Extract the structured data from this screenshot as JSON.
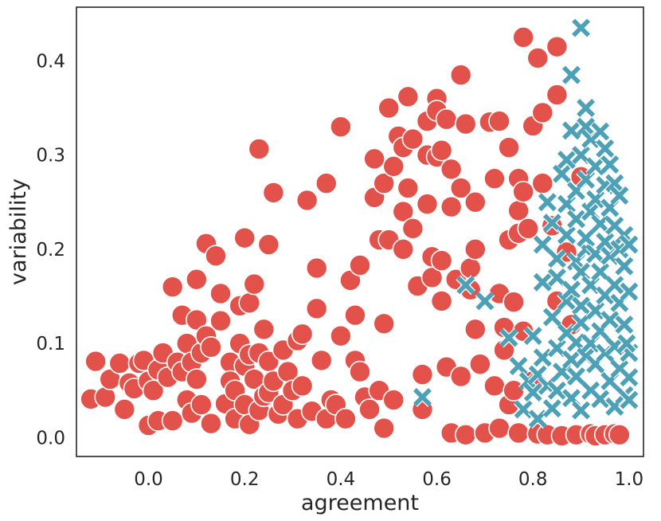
{
  "chart_data": {
    "type": "scatter",
    "title": "",
    "xlabel": "agreement",
    "ylabel": "variability",
    "xlim": [
      -0.15,
      1.03
    ],
    "ylim": [
      -0.02,
      0.457
    ],
    "xticks": [
      0.0,
      0.2,
      0.4,
      0.6,
      0.8,
      1.0
    ],
    "xtick_labels": [
      "0.0",
      "0.2",
      "0.4",
      "0.6",
      "0.8",
      "1.0"
    ],
    "yticks": [
      0.0,
      0.1,
      0.2,
      0.3,
      0.4
    ],
    "ytick_labels": [
      "0.0",
      "0.1",
      "0.2",
      "0.3",
      "0.4"
    ],
    "grid": false,
    "legend": "none",
    "series": [
      {
        "marker": "circle",
        "color": "#e2514a",
        "points": [
          [
            -0.12,
            0.041
          ],
          [
            -0.11,
            0.081
          ],
          [
            -0.09,
            0.043
          ],
          [
            -0.08,
            0.062
          ],
          [
            -0.06,
            0.079
          ],
          [
            -0.05,
            0.03
          ],
          [
            -0.04,
            0.058
          ],
          [
            -0.03,
            0.052
          ],
          [
            -0.02,
            0.079
          ],
          [
            -0.01,
            0.082
          ],
          [
            0.0,
            0.06
          ],
          [
            0.0,
            0.013
          ],
          [
            0.01,
            0.05
          ],
          [
            0.02,
            0.072
          ],
          [
            0.02,
            0.018
          ],
          [
            0.03,
            0.09
          ],
          [
            0.04,
            0.064
          ],
          [
            0.05,
            0.16
          ],
          [
            0.05,
            0.018
          ],
          [
            0.06,
            0.08
          ],
          [
            0.07,
            0.13
          ],
          [
            0.07,
            0.07
          ],
          [
            0.08,
            0.1
          ],
          [
            0.08,
            0.04
          ],
          [
            0.09,
            0.08
          ],
          [
            0.09,
            0.026
          ],
          [
            0.1,
            0.168
          ],
          [
            0.1,
            0.125
          ],
          [
            0.1,
            0.062
          ],
          [
            0.11,
            0.09
          ],
          [
            0.11,
            0.035
          ],
          [
            0.12,
            0.206
          ],
          [
            0.12,
            0.108
          ],
          [
            0.13,
            0.096
          ],
          [
            0.13,
            0.015
          ],
          [
            0.14,
            0.193
          ],
          [
            0.15,
            0.153
          ],
          [
            0.15,
            0.124
          ],
          [
            0.16,
            0.036
          ],
          [
            0.17,
            0.08
          ],
          [
            0.17,
            0.06
          ],
          [
            0.18,
            0.05
          ],
          [
            0.18,
            0.02
          ],
          [
            0.19,
            0.14
          ],
          [
            0.19,
            0.1
          ],
          [
            0.2,
            0.212
          ],
          [
            0.2,
            0.076
          ],
          [
            0.2,
            0.035
          ],
          [
            0.21,
            0.143
          ],
          [
            0.21,
            0.088
          ],
          [
            0.21,
            0.014
          ],
          [
            0.22,
            0.163
          ],
          [
            0.22,
            0.062
          ],
          [
            0.23,
            0.3065
          ],
          [
            0.23,
            0.09
          ],
          [
            0.23,
            0.029
          ],
          [
            0.24,
            0.115
          ],
          [
            0.24,
            0.044
          ],
          [
            0.25,
            0.205
          ],
          [
            0.25,
            0.081
          ],
          [
            0.25,
            0.048
          ],
          [
            0.26,
            0.26
          ],
          [
            0.26,
            0.06
          ],
          [
            0.27,
            0.025
          ],
          [
            0.28,
            0.093
          ],
          [
            0.28,
            0.035
          ],
          [
            0.29,
            0.07
          ],
          [
            0.3,
            0.05
          ],
          [
            0.31,
            0.103
          ],
          [
            0.31,
            0.02
          ],
          [
            0.32,
            0.11
          ],
          [
            0.32,
            0.055
          ],
          [
            0.33,
            0.252
          ],
          [
            0.34,
            0.028
          ],
          [
            0.35,
            0.18
          ],
          [
            0.35,
            0.137
          ],
          [
            0.36,
            0.082
          ],
          [
            0.37,
            0.27
          ],
          [
            0.37,
            0.02
          ],
          [
            0.38,
            0.04
          ],
          [
            0.39,
            0.035
          ],
          [
            0.4,
            0.33
          ],
          [
            0.4,
            0.108
          ],
          [
            0.41,
            0.02
          ],
          [
            0.42,
            0.167
          ],
          [
            0.43,
            0.13
          ],
          [
            0.43,
            0.082
          ],
          [
            0.44,
            0.183
          ],
          [
            0.44,
            0.07
          ],
          [
            0.45,
            0.043
          ],
          [
            0.46,
            0.03
          ],
          [
            0.47,
            0.296
          ],
          [
            0.47,
            0.255
          ],
          [
            0.48,
            0.21
          ],
          [
            0.48,
            0.05
          ],
          [
            0.49,
            0.27
          ],
          [
            0.49,
            0.121
          ],
          [
            0.49,
            0.01
          ],
          [
            0.5,
            0.35
          ],
          [
            0.5,
            0.21
          ],
          [
            0.51,
            0.288
          ],
          [
            0.51,
            0.04
          ],
          [
            0.52,
            0.32
          ],
          [
            0.53,
            0.308
          ],
          [
            0.53,
            0.24
          ],
          [
            0.53,
            0.2
          ],
          [
            0.54,
            0.362
          ],
          [
            0.54,
            0.265
          ],
          [
            0.55,
            0.317
          ],
          [
            0.55,
            0.222
          ],
          [
            0.56,
            0.161
          ],
          [
            0.57,
            0.067
          ],
          [
            0.57,
            0.03
          ],
          [
            0.58,
            0.336
          ],
          [
            0.58,
            0.3
          ],
          [
            0.58,
            0.248
          ],
          [
            0.59,
            0.192
          ],
          [
            0.59,
            0.17
          ],
          [
            0.6,
            0.36
          ],
          [
            0.6,
            0.347
          ],
          [
            0.6,
            0.298
          ],
          [
            0.61,
            0.305
          ],
          [
            0.61,
            0.188
          ],
          [
            0.61,
            0.145
          ],
          [
            0.62,
            0.338
          ],
          [
            0.62,
            0.075
          ],
          [
            0.63,
            0.285
          ],
          [
            0.63,
            0.245
          ],
          [
            0.63,
            0.005
          ],
          [
            0.64,
            0.168
          ],
          [
            0.65,
            0.385
          ],
          [
            0.65,
            0.265
          ],
          [
            0.65,
            0.065
          ],
          [
            0.66,
            0.333
          ],
          [
            0.66,
            0.003
          ],
          [
            0.67,
            0.18
          ],
          [
            0.67,
            0.157
          ],
          [
            0.68,
            0.25
          ],
          [
            0.68,
            0.2
          ],
          [
            0.68,
            0.115
          ],
          [
            0.69,
            0.078
          ],
          [
            0.7,
            0.005
          ],
          [
            0.71,
            0.335
          ],
          [
            0.72,
            0.275
          ],
          [
            0.72,
            0.055
          ],
          [
            0.73,
            0.336
          ],
          [
            0.73,
            0.153
          ],
          [
            0.73,
            0.01
          ],
          [
            0.74,
            0.117
          ],
          [
            0.74,
            0.093
          ],
          [
            0.75,
            0.308
          ],
          [
            0.75,
            0.21
          ],
          [
            0.75,
            0.035
          ],
          [
            0.76,
            0.144
          ],
          [
            0.76,
            0.05
          ],
          [
            0.77,
            0.275
          ],
          [
            0.77,
            0.241
          ],
          [
            0.77,
            0.217
          ],
          [
            0.77,
            0.005
          ],
          [
            0.78,
            0.425
          ],
          [
            0.78,
            0.261
          ],
          [
            0.78,
            0.113
          ],
          [
            0.79,
            0.222
          ],
          [
            0.8,
            0.331
          ],
          [
            0.8,
            0.06
          ],
          [
            0.81,
            0.403
          ],
          [
            0.81,
            0.004
          ],
          [
            0.82,
            0.345
          ],
          [
            0.82,
            0.27
          ],
          [
            0.83,
            0.003
          ],
          [
            0.84,
            0.225
          ],
          [
            0.85,
            0.364
          ],
          [
            0.85,
            0.415
          ],
          [
            0.85,
            0.145
          ],
          [
            0.86,
            0.002
          ],
          [
            0.87,
            0.197
          ],
          [
            0.88,
            0.12
          ],
          [
            0.89,
            0.003
          ],
          [
            0.9,
            0.277
          ],
          [
            0.92,
            0.004
          ],
          [
            0.93,
            0.002
          ],
          [
            0.95,
            0.003
          ],
          [
            0.97,
            0.004
          ],
          [
            0.98,
            0.003
          ]
        ]
      },
      {
        "marker": "x",
        "color": "#4da1b6",
        "points": [
          [
            0.57,
            0.043
          ],
          [
            0.66,
            0.162
          ],
          [
            0.7,
            0.145
          ],
          [
            0.75,
            0.106
          ],
          [
            0.77,
            0.076
          ],
          [
            0.78,
            0.03
          ],
          [
            0.79,
            0.06
          ],
          [
            0.8,
            0.048
          ],
          [
            0.8,
            0.108
          ],
          [
            0.81,
            0.02
          ],
          [
            0.81,
            0.067
          ],
          [
            0.82,
            0.165
          ],
          [
            0.82,
            0.205
          ],
          [
            0.82,
            0.085
          ],
          [
            0.83,
            0.055
          ],
          [
            0.83,
            0.25
          ],
          [
            0.84,
            0.228
          ],
          [
            0.84,
            0.031
          ],
          [
            0.84,
            0.128
          ],
          [
            0.85,
            0.095
          ],
          [
            0.85,
            0.17
          ],
          [
            0.85,
            0.19
          ],
          [
            0.85,
            0.05
          ],
          [
            0.86,
            0.28
          ],
          [
            0.86,
            0.07
          ],
          [
            0.87,
            0.295
          ],
          [
            0.87,
            0.248
          ],
          [
            0.87,
            0.111
          ],
          [
            0.87,
            0.215
          ],
          [
            0.87,
            0.145
          ],
          [
            0.88,
            0.326
          ],
          [
            0.88,
            0.385
          ],
          [
            0.88,
            0.157
          ],
          [
            0.88,
            0.083
          ],
          [
            0.88,
            0.042
          ],
          [
            0.89,
            0.187
          ],
          [
            0.89,
            0.262
          ],
          [
            0.89,
            0.232
          ],
          [
            0.89,
            0.101
          ],
          [
            0.89,
            0.065
          ],
          [
            0.9,
            0.435
          ],
          [
            0.9,
            0.3
          ],
          [
            0.9,
            0.176
          ],
          [
            0.9,
            0.14
          ],
          [
            0.9,
            0.122
          ],
          [
            0.9,
            0.029
          ],
          [
            0.91,
            0.35
          ],
          [
            0.91,
            0.33
          ],
          [
            0.91,
            0.274
          ],
          [
            0.91,
            0.2
          ],
          [
            0.91,
            0.212
          ],
          [
            0.91,
            0.086
          ],
          [
            0.92,
            0.317
          ],
          [
            0.92,
            0.24
          ],
          [
            0.92,
            0.162
          ],
          [
            0.92,
            0.05
          ],
          [
            0.92,
            0.1
          ],
          [
            0.93,
            0.253
          ],
          [
            0.93,
            0.288
          ],
          [
            0.93,
            0.195
          ],
          [
            0.93,
            0.135
          ],
          [
            0.93,
            0.078
          ],
          [
            0.94,
            0.325
          ],
          [
            0.94,
            0.227
          ],
          [
            0.94,
            0.176
          ],
          [
            0.94,
            0.041
          ],
          [
            0.94,
            0.113
          ],
          [
            0.95,
            0.307
          ],
          [
            0.95,
            0.268
          ],
          [
            0.95,
            0.208
          ],
          [
            0.95,
            0.151
          ],
          [
            0.95,
            0.09
          ],
          [
            0.96,
            0.29
          ],
          [
            0.96,
            0.244
          ],
          [
            0.96,
            0.193
          ],
          [
            0.96,
            0.125
          ],
          [
            0.96,
            0.06
          ],
          [
            0.97,
            0.27
          ],
          [
            0.97,
            0.225
          ],
          [
            0.97,
            0.162
          ],
          [
            0.97,
            0.097
          ],
          [
            0.97,
            0.033
          ],
          [
            0.98,
            0.257
          ],
          [
            0.98,
            0.2
          ],
          [
            0.98,
            0.143
          ],
          [
            0.98,
            0.073
          ],
          [
            0.99,
            0.215
          ],
          [
            0.99,
            0.182
          ],
          [
            0.99,
            0.12
          ],
          [
            0.99,
            0.045
          ],
          [
            1.0,
            0.205
          ],
          [
            1.0,
            0.155
          ],
          [
            1.0,
            0.09
          ],
          [
            1.0,
            0.064
          ],
          [
            1.0,
            0.04
          ],
          [
            0.995,
            0.1
          ]
        ]
      }
    ]
  }
}
